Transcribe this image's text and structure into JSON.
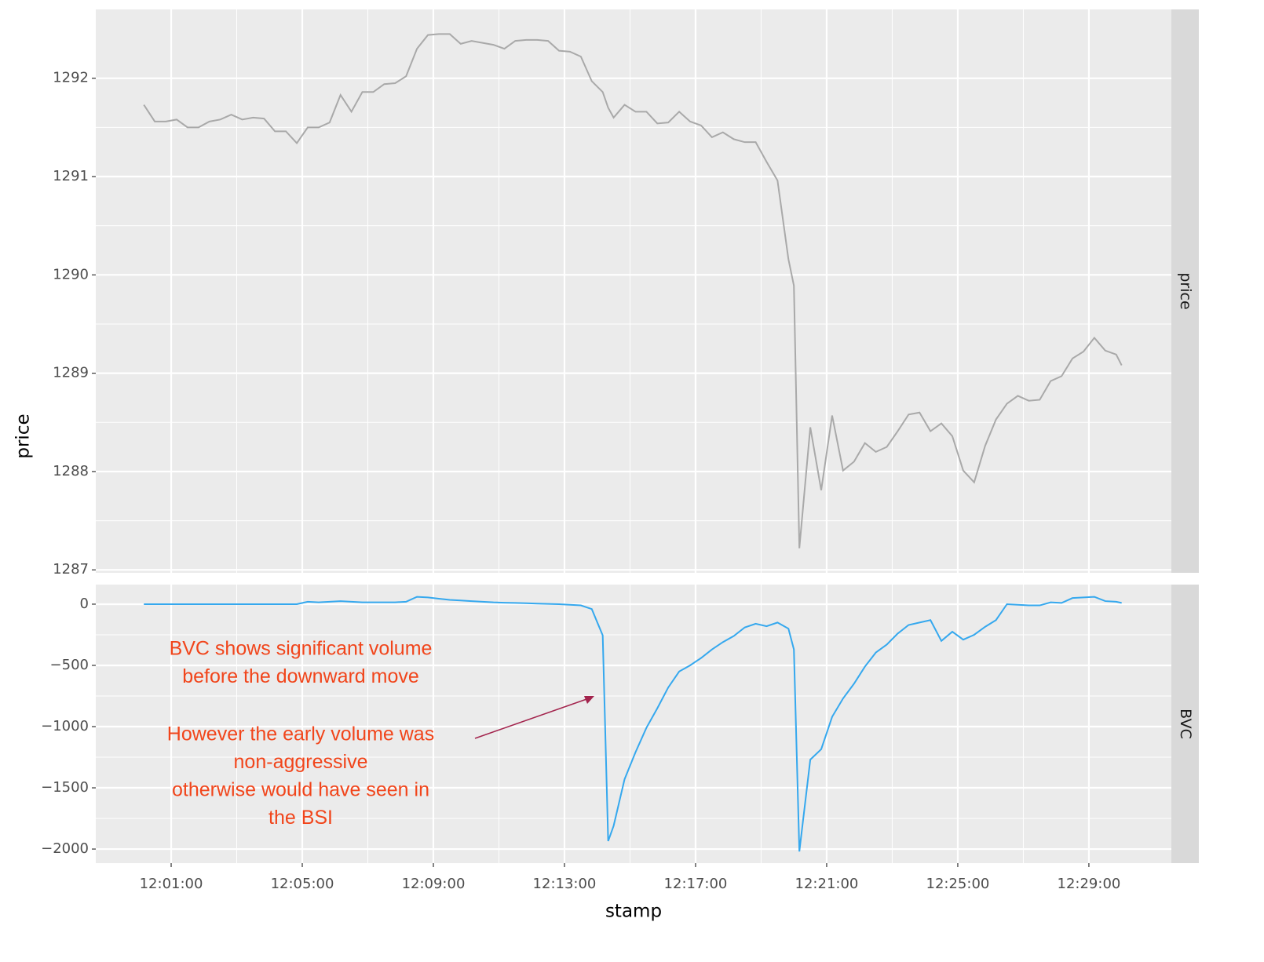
{
  "chart_data": {
    "type": "line",
    "x_label": "stamp",
    "y_label": "price",
    "grid": true,
    "x": [
      "12:00:10",
      "12:00:30",
      "12:00:50",
      "12:01:10",
      "12:01:30",
      "12:01:50",
      "12:02:10",
      "12:02:30",
      "12:02:50",
      "12:03:10",
      "12:03:30",
      "12:03:50",
      "12:04:10",
      "12:04:30",
      "12:04:50",
      "12:05:10",
      "12:05:30",
      "12:05:50",
      "12:06:10",
      "12:06:30",
      "12:06:50",
      "12:07:10",
      "12:07:30",
      "12:07:50",
      "12:08:10",
      "12:08:30",
      "12:08:50",
      "12:09:10",
      "12:09:30",
      "12:09:50",
      "12:10:10",
      "12:10:30",
      "12:10:50",
      "12:11:10",
      "12:11:30",
      "12:11:50",
      "12:12:10",
      "12:12:30",
      "12:12:50",
      "12:13:10",
      "12:13:30",
      "12:13:50",
      "12:14:10",
      "12:14:20",
      "12:14:30",
      "12:14:50",
      "12:15:10",
      "12:15:30",
      "12:15:50",
      "12:16:10",
      "12:16:30",
      "12:16:50",
      "12:17:10",
      "12:17:30",
      "12:17:50",
      "12:18:10",
      "12:18:30",
      "12:18:50",
      "12:19:10",
      "12:19:30",
      "12:19:50",
      "12:20:00",
      "12:20:10",
      "12:20:30",
      "12:20:50",
      "12:21:10",
      "12:21:30",
      "12:21:50",
      "12:22:10",
      "12:22:30",
      "12:22:50",
      "12:23:10",
      "12:23:30",
      "12:23:50",
      "12:24:10",
      "12:24:30",
      "12:24:50",
      "12:25:10",
      "12:25:30",
      "12:25:50",
      "12:26:10",
      "12:26:30",
      "12:26:50",
      "12:27:10",
      "12:27:30",
      "12:27:50",
      "12:28:10",
      "12:28:30",
      "12:28:50",
      "12:29:10",
      "12:29:30",
      "12:29:50",
      "12:30:00"
    ],
    "xlim": [
      "11:58:42",
      "12:31:31"
    ],
    "xticks": [
      "12:01:00",
      "12:05:00",
      "12:09:00",
      "12:13:00",
      "12:17:00",
      "12:21:00",
      "12:25:00",
      "12:29:00"
    ],
    "panels": [
      {
        "strip": "price",
        "color": "#a9a9a9",
        "ylim": [
          1286.97,
          1292.7
        ],
        "yticks": [
          1287,
          1288,
          1289,
          1290,
          1291,
          1292
        ],
        "values": [
          1291.73,
          1291.56,
          1291.56,
          1291.58,
          1291.5,
          1291.5,
          1291.56,
          1291.58,
          1291.63,
          1291.58,
          1291.6,
          1291.59,
          1291.46,
          1291.46,
          1291.34,
          1291.5,
          1291.5,
          1291.55,
          1291.83,
          1291.66,
          1291.86,
          1291.86,
          1291.94,
          1291.95,
          1292.02,
          1292.3,
          1292.44,
          1292.45,
          1292.45,
          1292.35,
          1292.38,
          1292.36,
          1292.34,
          1292.3,
          1292.38,
          1292.39,
          1292.39,
          1292.38,
          1292.28,
          1292.27,
          1292.22,
          1291.97,
          1291.86,
          1291.7,
          1291.6,
          1291.73,
          1291.66,
          1291.66,
          1291.54,
          1291.55,
          1291.66,
          1291.56,
          1291.52,
          1291.4,
          1291.45,
          1291.38,
          1291.35,
          1291.35,
          1291.15,
          1290.96,
          1290.16,
          1289.89,
          1287.22,
          1288.45,
          1287.81,
          1288.57,
          1288.01,
          1288.1,
          1288.29,
          1288.2,
          1288.25,
          1288.41,
          1288.58,
          1288.6,
          1288.41,
          1288.49,
          1288.36,
          1288.01,
          1287.89,
          1288.26,
          1288.53,
          1288.69,
          1288.77,
          1288.72,
          1288.73,
          1288.92,
          1288.97,
          1289.15,
          1289.22,
          1289.36,
          1289.23,
          1289.19,
          1289.08
        ]
      },
      {
        "strip": "BVC",
        "color": "#35a8ee",
        "ylim": [
          -2115,
          160
        ],
        "yticks": [
          {
            "value": -2000,
            "label": "−2000"
          },
          {
            "value": -1500,
            "label": "−1500"
          },
          {
            "value": -1000,
            "label": "−1000"
          },
          {
            "value": -500,
            "label": "−500"
          },
          0
        ],
        "values": [
          0,
          0,
          0,
          0,
          0,
          0,
          0,
          0,
          0,
          0,
          0,
          0,
          0,
          0,
          0,
          20,
          15,
          20,
          25,
          20,
          15,
          15,
          15,
          15,
          20,
          60,
          55,
          45,
          35,
          30,
          25,
          20,
          15,
          12,
          10,
          8,
          5,
          2,
          0,
          -5,
          -10,
          -40,
          -255,
          -1935,
          -1810,
          -1430,
          -1210,
          -1010,
          -850,
          -680,
          -550,
          -500,
          -440,
          -370,
          -310,
          -260,
          -190,
          -160,
          -180,
          -150,
          -200,
          -370,
          -2020,
          -1270,
          -1185,
          -920,
          -770,
          -650,
          -510,
          -395,
          -330,
          -240,
          -170,
          -150,
          -130,
          -300,
          -225,
          -290,
          -250,
          -185,
          -130,
          0,
          -5,
          -10,
          -10,
          15,
          10,
          50,
          55,
          60,
          25,
          20,
          10
        ],
        "annotations": [
          [
            "BVC shows significant volume",
            "before the downward move"
          ],
          [
            "However the early volume was",
            "non-aggressive",
            "otherwise would have seen in",
            "the BSI"
          ]
        ]
      }
    ]
  }
}
